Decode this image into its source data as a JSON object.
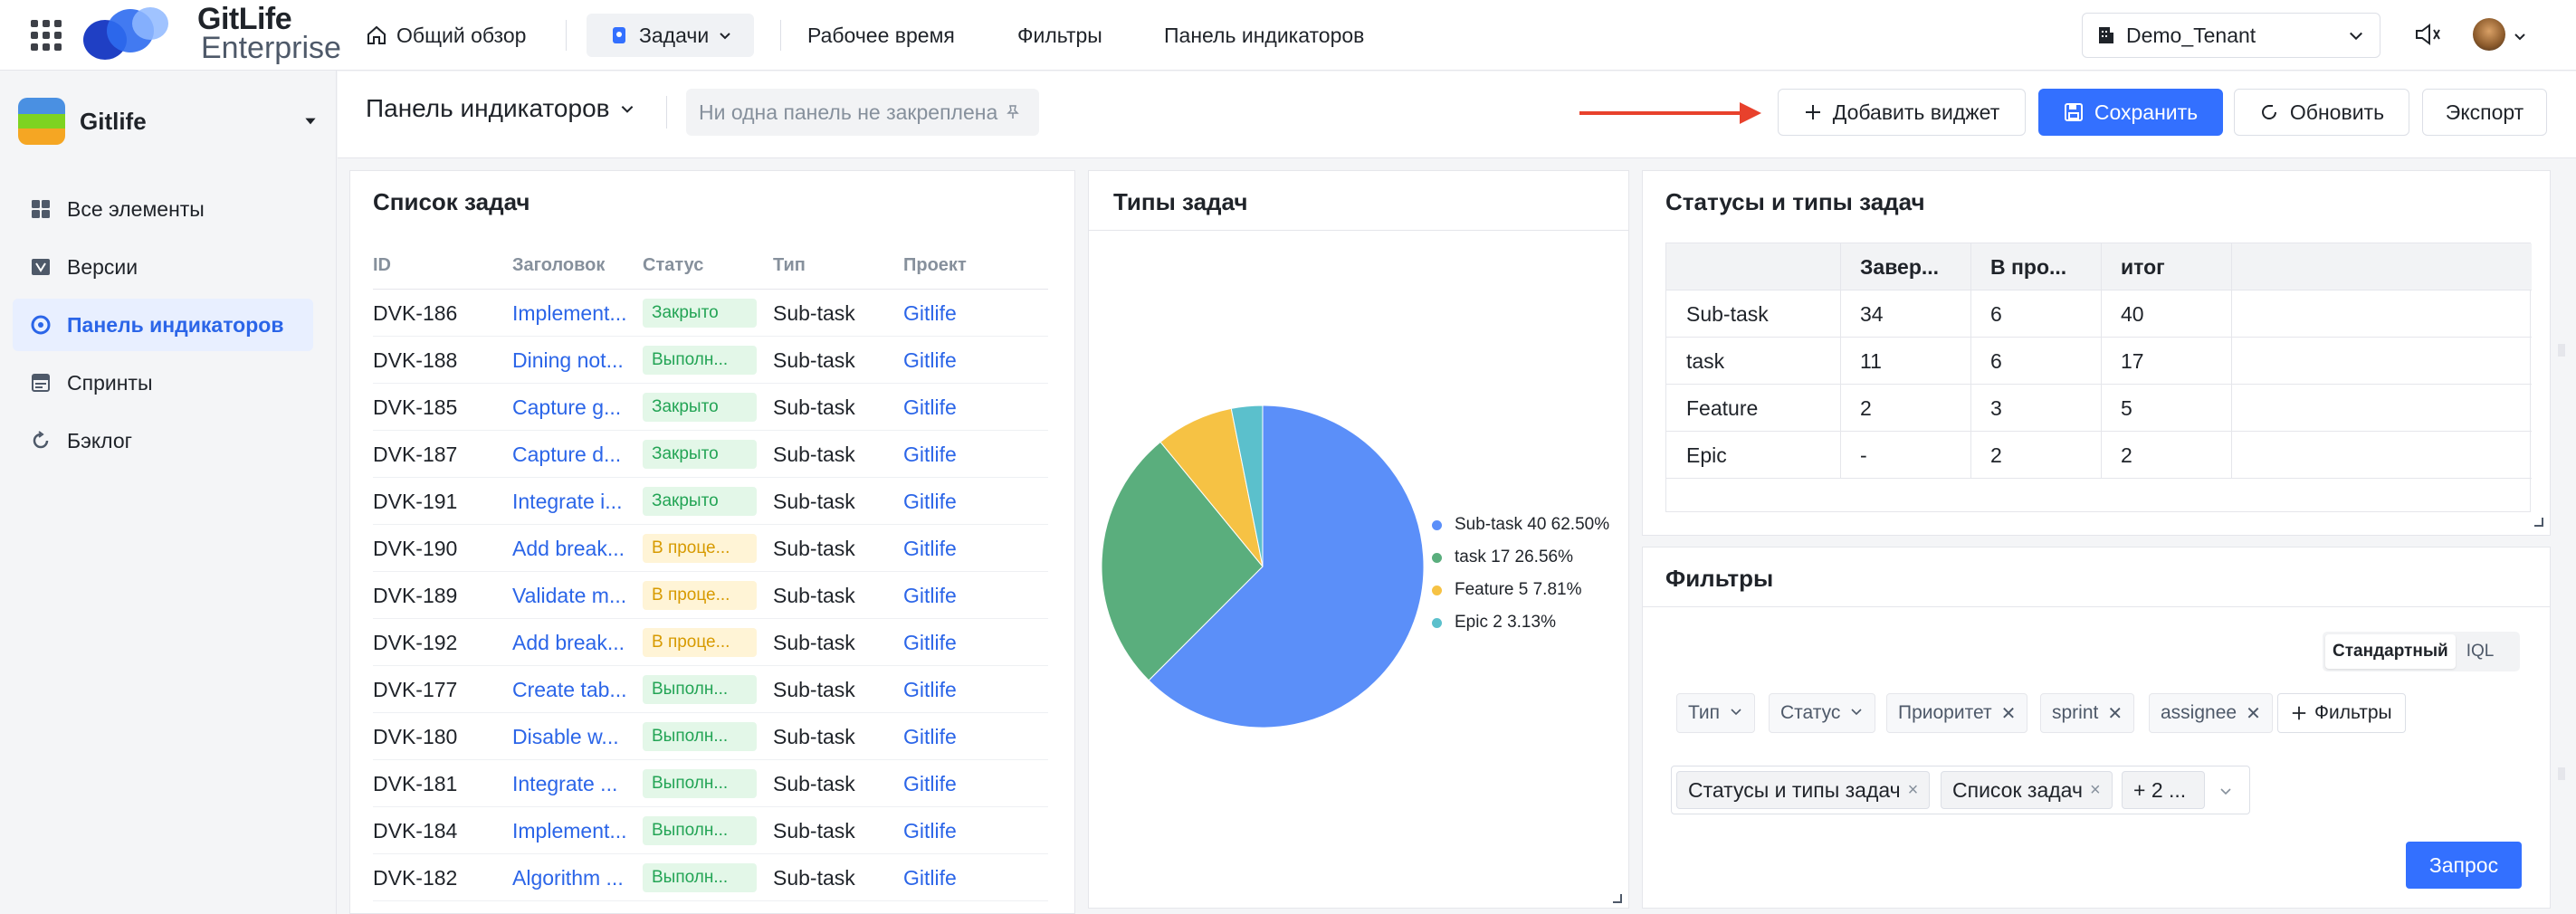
{
  "app": {
    "brand_line1": "GitLife",
    "brand_line2": "Enterprise",
    "accent": "#3370ff"
  },
  "topnav": {
    "overview": "Общий обзор",
    "tasks": "Задачи",
    "worktime": "Рабочее время",
    "filters": "Фильтры",
    "dashboard": "Панель индикаторов",
    "tenant": "Demo_Tenant"
  },
  "sidebar": {
    "project": "Gitlife",
    "items": [
      {
        "label": "Все элементы",
        "icon": "grid-icon"
      },
      {
        "label": "Версии",
        "icon": "version-icon"
      },
      {
        "label": "Панель индикаторов",
        "icon": "dashboard-icon",
        "active": true
      },
      {
        "label": "Спринты",
        "icon": "sprint-icon"
      },
      {
        "label": "Бэклог",
        "icon": "backlog-icon"
      }
    ]
  },
  "header": {
    "title": "Панель индикаторов",
    "pin_placeholder": "Ни одна панель не закреплена",
    "add_widget": "Добавить виджет",
    "save": "Сохранить",
    "refresh": "Обновить",
    "export": "Экспорт"
  },
  "tasks_widget": {
    "title": "Список задач",
    "columns": [
      "ID",
      "Заголовок",
      "Статус",
      "Тип",
      "Проект"
    ],
    "rows": [
      {
        "id": "DVK-186",
        "title": "Implement...",
        "status": "Закрыто",
        "kind": "closed",
        "type": "Sub-task",
        "project": "Gitlife"
      },
      {
        "id": "DVK-188",
        "title": "Dining not...",
        "status": "Выполн...",
        "kind": "done",
        "type": "Sub-task",
        "project": "Gitlife"
      },
      {
        "id": "DVK-185",
        "title": "Capture g...",
        "status": "Закрыто",
        "kind": "closed",
        "type": "Sub-task",
        "project": "Gitlife"
      },
      {
        "id": "DVK-187",
        "title": "Capture d...",
        "status": "Закрыто",
        "kind": "closed",
        "type": "Sub-task",
        "project": "Gitlife"
      },
      {
        "id": "DVK-191",
        "title": "Integrate i...",
        "status": "Закрыто",
        "kind": "closed",
        "type": "Sub-task",
        "project": "Gitlife"
      },
      {
        "id": "DVK-190",
        "title": "Add break...",
        "status": "В проце...",
        "kind": "prog",
        "type": "Sub-task",
        "project": "Gitlife"
      },
      {
        "id": "DVK-189",
        "title": "Validate m...",
        "status": "В проце...",
        "kind": "prog",
        "type": "Sub-task",
        "project": "Gitlife"
      },
      {
        "id": "DVK-192",
        "title": "Add break...",
        "status": "В проце...",
        "kind": "prog",
        "type": "Sub-task",
        "project": "Gitlife"
      },
      {
        "id": "DVK-177",
        "title": "Create tab...",
        "status": "Выполн...",
        "kind": "done",
        "type": "Sub-task",
        "project": "Gitlife"
      },
      {
        "id": "DVK-180",
        "title": "Disable w...",
        "status": "Выполн...",
        "kind": "done",
        "type": "Sub-task",
        "project": "Gitlife"
      },
      {
        "id": "DVK-181",
        "title": "Integrate ...",
        "status": "Выполн...",
        "kind": "done",
        "type": "Sub-task",
        "project": "Gitlife"
      },
      {
        "id": "DVK-184",
        "title": "Implement...",
        "status": "Выполн...",
        "kind": "done",
        "type": "Sub-task",
        "project": "Gitlife"
      },
      {
        "id": "DVK-182",
        "title": "Algorithm ...",
        "status": "Выполн...",
        "kind": "done",
        "type": "Sub-task",
        "project": "Gitlife"
      }
    ]
  },
  "chart_data": {
    "type": "pie",
    "title": "Типы задач",
    "slices": [
      {
        "label": "Sub-task 40 62.50%",
        "value": 40,
        "color": "#5b8ff9"
      },
      {
        "label": "task 17 26.56%",
        "value": 17,
        "color": "#5aae7d"
      },
      {
        "label": "Feature 5 7.81%",
        "value": 5,
        "color": "#f6c244"
      },
      {
        "label": "Epic 2 3.13%",
        "value": 2,
        "color": "#5bc0cc"
      }
    ],
    "legend_position": "right"
  },
  "status_widget": {
    "title": "Статусы и типы задач",
    "columns": [
      "",
      "Завер...",
      "В про...",
      "итог"
    ],
    "rows": [
      [
        "Sub-task",
        "34",
        "6",
        "40"
      ],
      [
        "task",
        "11",
        "6",
        "17"
      ],
      [
        "Feature",
        "2",
        "3",
        "5"
      ],
      [
        "Epic",
        "-",
        "2",
        "2"
      ]
    ]
  },
  "filters_widget": {
    "title": "Фильтры",
    "mode_standard": "Стандартный",
    "mode_iql": "IQL",
    "chips": [
      {
        "label": "Тип",
        "kind": "dropdown"
      },
      {
        "label": "Статус",
        "kind": "dropdown"
      },
      {
        "label": "Приоритет",
        "kind": "removable"
      },
      {
        "label": "sprint",
        "kind": "removable"
      },
      {
        "label": "assignee",
        "kind": "removable"
      }
    ],
    "add_filter": "Фильтры",
    "tags": [
      "Статусы и типы задач",
      "Список задач"
    ],
    "more": "+ 2 ...",
    "query": "Запрос"
  }
}
